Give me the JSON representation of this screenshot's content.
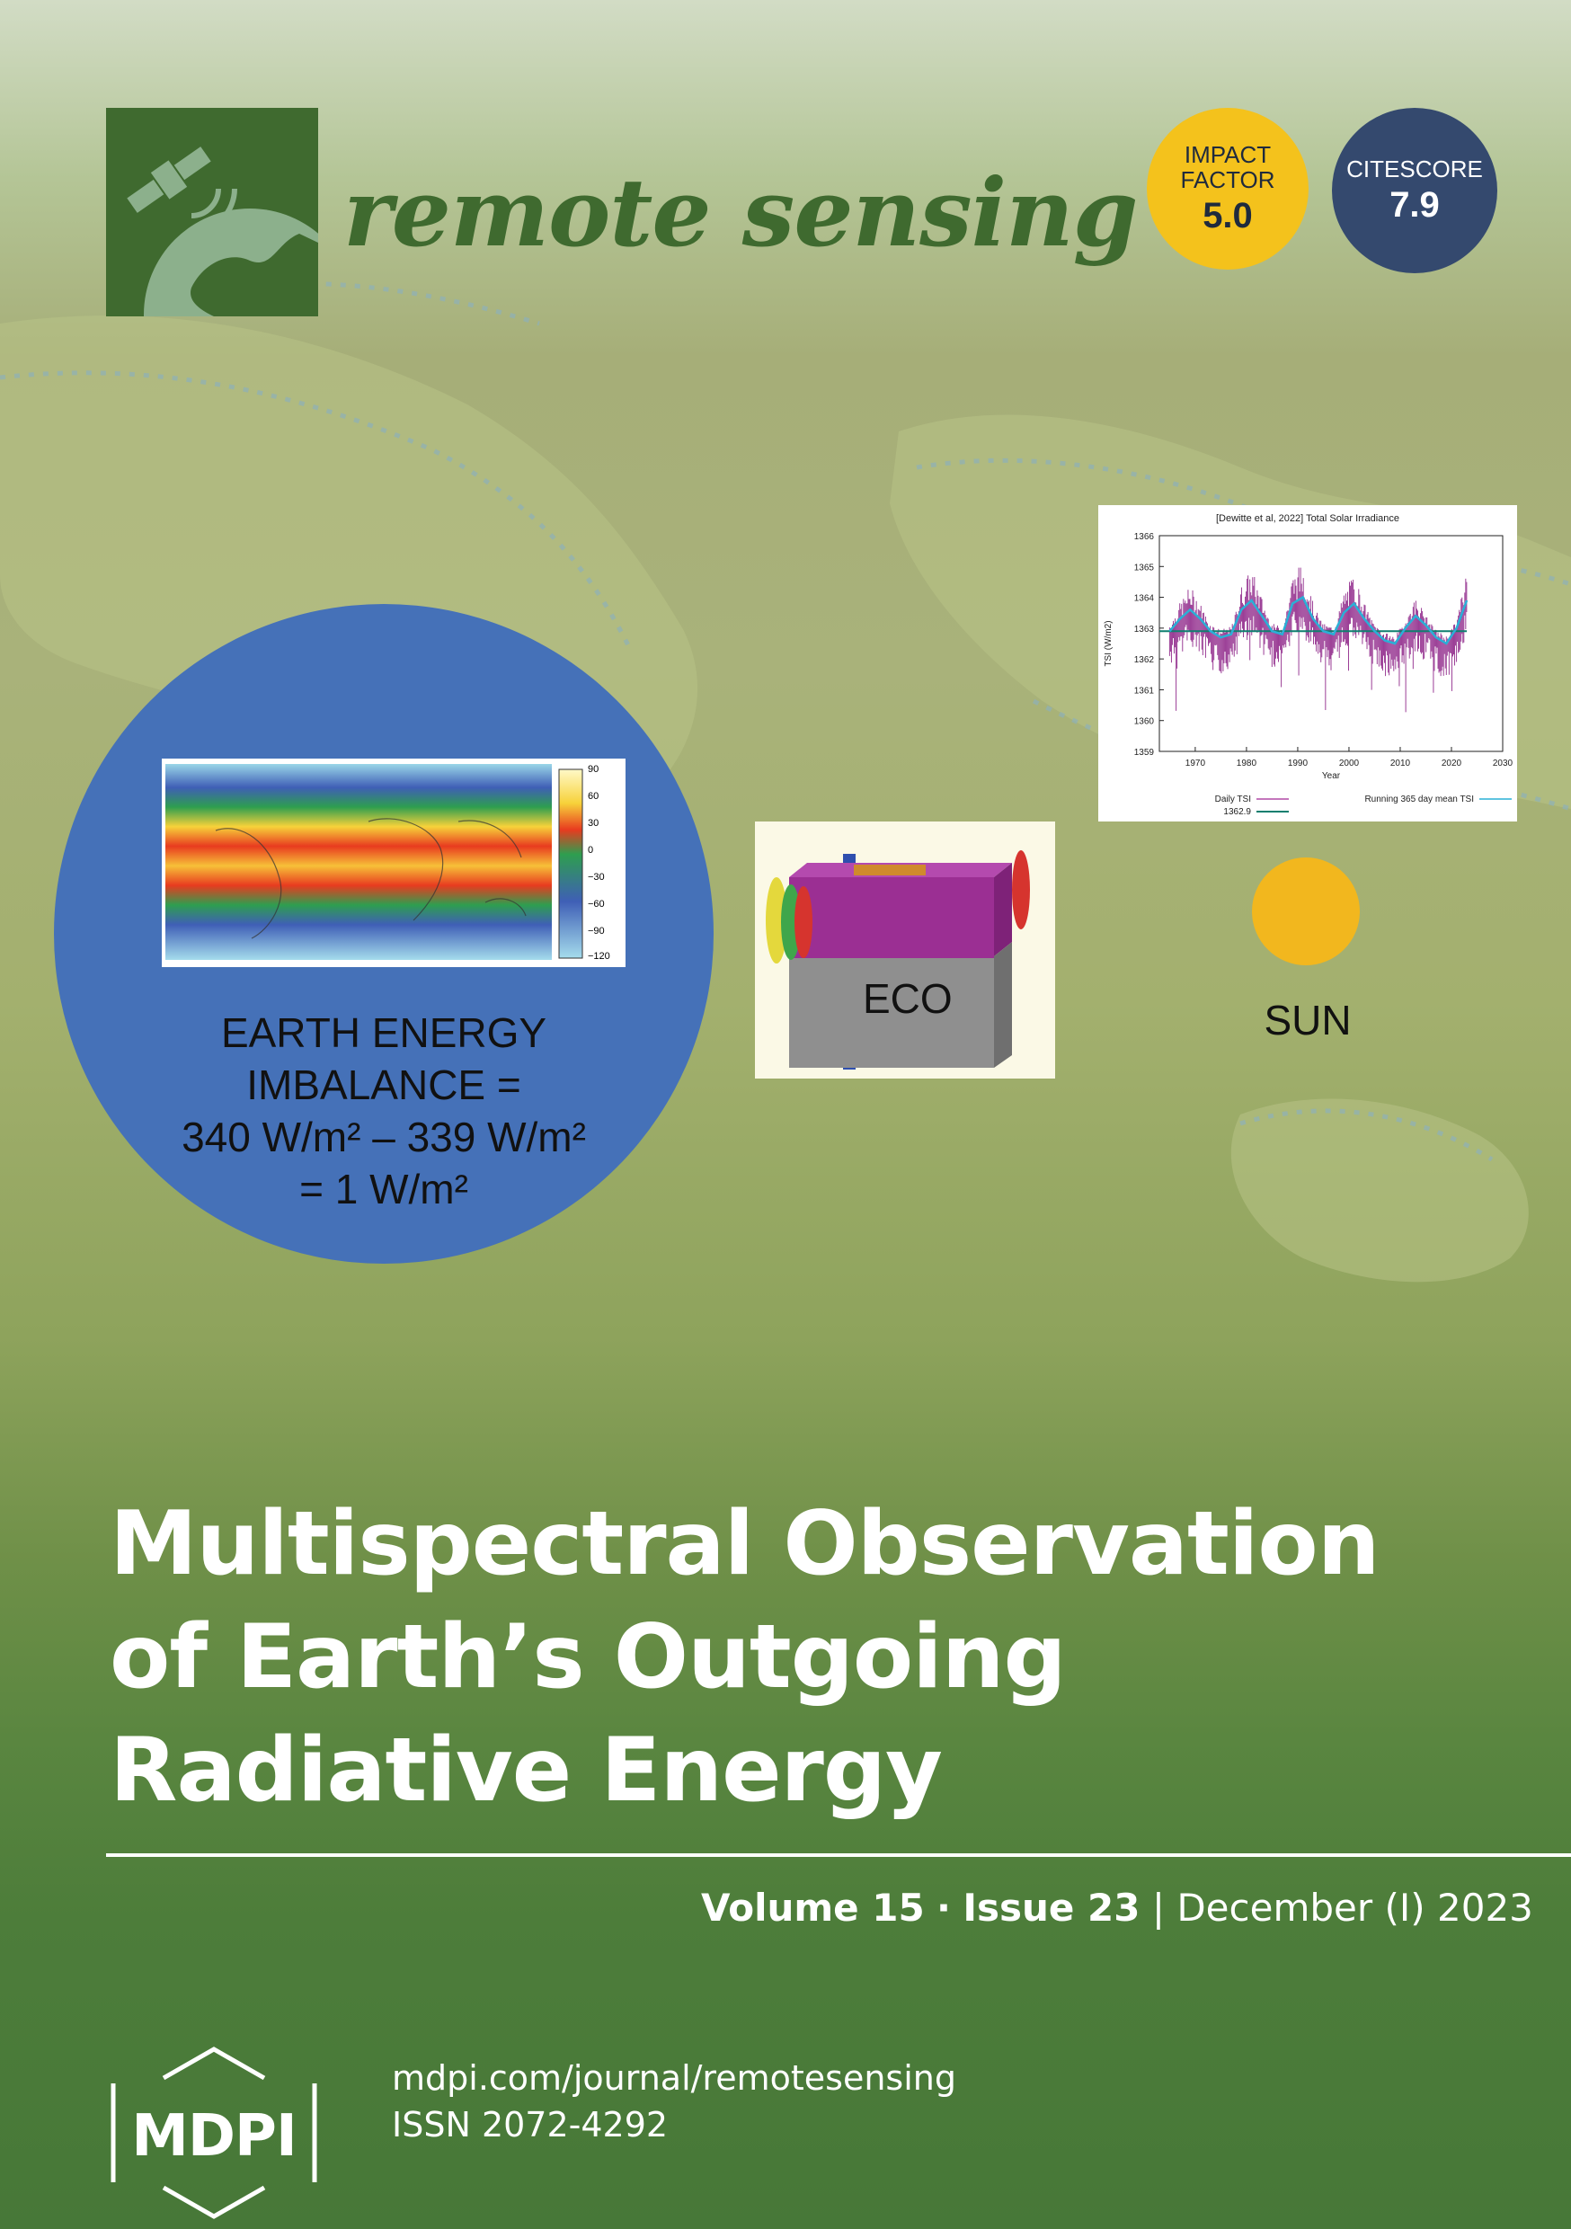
{
  "colors": {
    "journal_green": "#3f6a2f",
    "impact_yellow": "#f4c21c",
    "citescore_navy": "#34496e",
    "circle_blue": "#4571b8",
    "sun": "#f2b71e"
  },
  "header": {
    "journal_name": "remote sensing",
    "logo_icon": "satellite-earth-icon"
  },
  "badges": {
    "impact": {
      "label_line1": "IMPACT",
      "label_line2": "FACTOR",
      "value": "5.0"
    },
    "citescore": {
      "label": "CITESCORE",
      "value": "7.9"
    }
  },
  "eei": {
    "line1": "EARTH ENERGY",
    "line2": "IMBALANCE =",
    "line3": "340 W/m² – 339 W/m²",
    "line4": "= 1 W/m²",
    "colorbar_ticks": [
      "90",
      "60",
      "30",
      "0",
      "−30",
      "−60",
      "−90",
      "−120"
    ]
  },
  "eco": {
    "label": "ECO"
  },
  "sun": {
    "label": "SUN"
  },
  "chart_data": {
    "type": "line",
    "title": "[Dewitte et al, 2022] Total Solar Irradiance",
    "xlabel": "Year",
    "ylabel": "TSI (W/m2)",
    "xlim": [
      1963,
      2030
    ],
    "ylim": [
      1359,
      1366
    ],
    "x_ticks": [
      "1970",
      "1980",
      "1990",
      "2000",
      "2010",
      "2020",
      "2030"
    ],
    "y_ticks": [
      "1359",
      "1360",
      "1361",
      "1362",
      "1363",
      "1364",
      "1365",
      "1366"
    ],
    "legend": [
      "Daily TSI",
      "Running 365 day mean TSI",
      "1362.9"
    ],
    "series": [
      {
        "name": "Running 365 day mean TSI",
        "x": [
          1965,
          1967,
          1969,
          1971,
          1973,
          1975,
          1977,
          1979,
          1981,
          1983,
          1985,
          1987,
          1989,
          1991,
          1993,
          1995,
          1997,
          1999,
          2001,
          2003,
          2005,
          2007,
          2009,
          2011,
          2013,
          2015,
          2017,
          2019,
          2021,
          2023
        ],
        "y": [
          1362.9,
          1363.3,
          1363.6,
          1363.3,
          1362.9,
          1362.7,
          1362.8,
          1363.6,
          1363.9,
          1363.4,
          1362.9,
          1362.8,
          1363.8,
          1364.0,
          1363.3,
          1362.9,
          1362.8,
          1363.5,
          1363.8,
          1363.3,
          1362.9,
          1362.6,
          1362.5,
          1363.0,
          1363.4,
          1363.1,
          1362.7,
          1362.5,
          1363.0,
          1363.9
        ]
      },
      {
        "name": "1362.9",
        "x": [
          1963,
          2023
        ],
        "y": [
          1362.9,
          1362.9
        ]
      }
    ]
  },
  "title": {
    "line1": "Multispectral Observation",
    "line2": "of Earth’s Outgoing",
    "line3": "Radiative Energy"
  },
  "issue": {
    "volume": "Volume 15",
    "sep": "·",
    "issue_no": "Issue 23",
    "bar": "|",
    "date": "December (I) 2023"
  },
  "footer": {
    "publisher": "MDPI",
    "url": "mdpi.com/journal/remotesensing",
    "issn": "ISSN 2072-4292"
  }
}
